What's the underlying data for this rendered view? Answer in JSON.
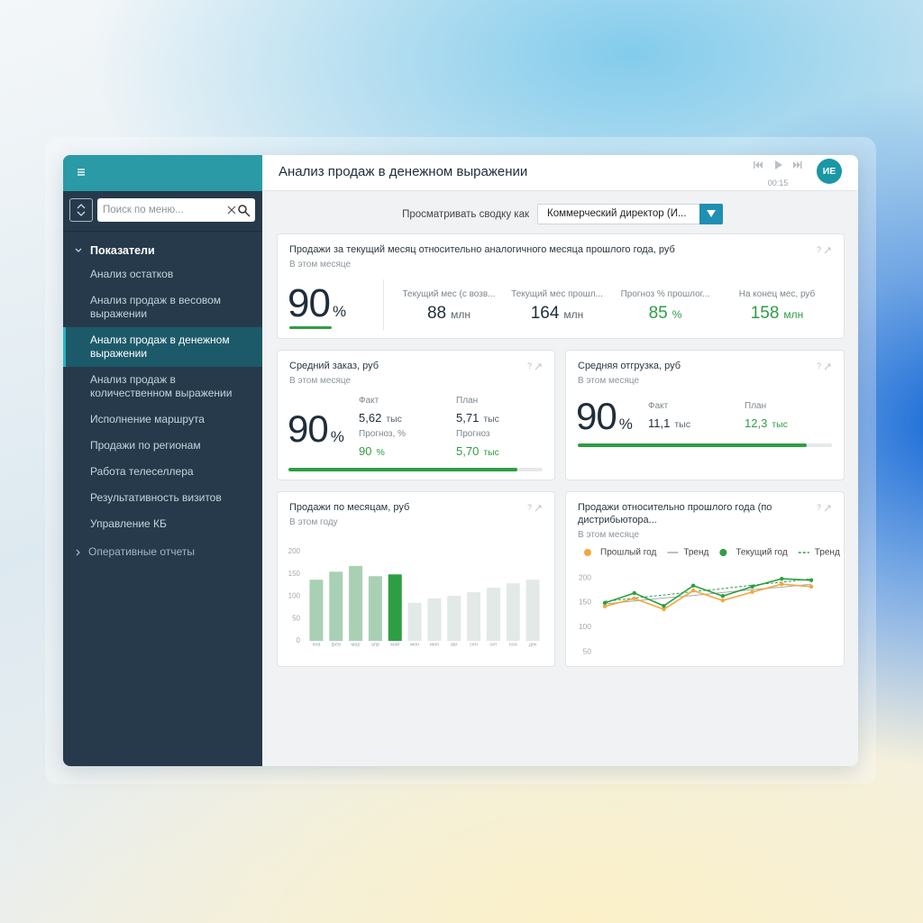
{
  "ui": {
    "help_icon": "?"
  },
  "sidebar": {
    "search_placeholder": "Поиск по меню...",
    "group": "Показатели",
    "items": [
      "Анализ остатков",
      "Анализ продаж в весовом выражении",
      "Анализ продаж в денежном выражении",
      "Анализ продаж в количественном выражении",
      "Исполнение маршрута",
      "Продажи по регионам",
      "Работа телеселлера",
      "Результативность визитов",
      "Управление КБ"
    ],
    "active_index": 2,
    "reports": "Оперативные отчеты"
  },
  "header": {
    "title": "Анализ продаж в денежном выражении",
    "time": "00:15",
    "avatar": "ИЕ"
  },
  "filter": {
    "label": "Просматривать сводку как",
    "value": "Коммерческий директор (И..."
  },
  "cards": [
    {
      "title": "Продажи за текущий месяц относительно аналогичного месяца прошлого года, руб",
      "subtitle": "В этом месяце",
      "percent": 90,
      "percent_unit": "%",
      "metrics": [
        {
          "label": "Текущий мес (с возв...",
          "value": 88,
          "unit": "млн",
          "color": "#1f2d3a"
        },
        {
          "label": "Текущий мес прошл...",
          "value": 164,
          "unit": "млн",
          "color": "#1f2d3a"
        },
        {
          "label": "Прогноз % прошлог...",
          "value": 85,
          "unit": "%",
          "color": "#2e9e44"
        },
        {
          "label": "На конец мес, руб",
          "value": 158,
          "unit": "млн",
          "color": "#2e9e44"
        }
      ]
    },
    {
      "title": "Средний заказ, руб",
      "subtitle": "В этом месяце",
      "percent": 90,
      "percent_unit": "%",
      "metrics": [
        {
          "label": "Факт",
          "value": "5,62",
          "unit": "тыс",
          "color": "#1f2d3a"
        },
        {
          "label": "План",
          "value": "5,71",
          "unit": "тыс",
          "color": "#1f2d3a"
        },
        {
          "label": "Прогноз, %",
          "value": 90,
          "unit": "%",
          "color": "#2e9e44"
        },
        {
          "label": "Прогноз",
          "value": "5,70",
          "unit": "тыс",
          "color": "#2e9e44"
        }
      ]
    },
    {
      "title": "Средняя отгрузка, руб",
      "subtitle": "В этом месяце",
      "percent": 90,
      "percent_unit": "%",
      "metrics": [
        {
          "label": "Факт",
          "value": "11,1",
          "unit": "тыс",
          "color": "#1f2d3a"
        },
        {
          "label": "План",
          "value": "12,3",
          "unit": "тыс",
          "color": "#2e9e44"
        }
      ]
    }
  ],
  "chart_data": [
    {
      "type": "bar",
      "title": "Продажи по месяцам, руб",
      "subtitle": "В этом году",
      "categories": [
        "янв",
        "фев",
        "мар",
        "апр",
        "май",
        "июн",
        "июл",
        "авг",
        "сен",
        "окт",
        "ноя",
        "дек"
      ],
      "values": [
        137,
        155,
        168,
        145,
        149,
        85,
        95,
        101,
        109,
        119,
        129,
        137
      ],
      "colors": [
        "#a9d0b4",
        "#a9d0b4",
        "#a9d0b4",
        "#a9d0b4",
        "#2e9e44",
        "#e2e9e7",
        "#e2e9e7",
        "#e2e9e7",
        "#e2e9e7",
        "#e2e9e7",
        "#e2e9e7",
        "#e2e9e7"
      ],
      "ylim": [
        0,
        200
      ],
      "yticks": [
        0,
        50,
        100,
        150,
        200
      ]
    },
    {
      "type": "line",
      "title": "Продажи относительно прошлого года (по дистрибьютора...",
      "subtitle": "В этом месяце",
      "categories": [
        null,
        null,
        null,
        null,
        null,
        null,
        null,
        null
      ],
      "series": [
        {
          "name": "Прошлый год",
          "color": "#f2a83a",
          "markers": true,
          "dashed": false,
          "values": [
            142,
            158,
            136,
            174,
            154,
            171,
            187,
            182
          ]
        },
        {
          "name": "Тренд",
          "color": "#a3acb2",
          "markers": false,
          "dashed": false,
          "values": [
            147,
            153,
            159,
            164,
            170,
            176,
            181,
            187
          ]
        },
        {
          "name": "Текущий год",
          "color": "#2e9e44",
          "markers": true,
          "dashed": false,
          "values": [
            149,
            169,
            143,
            184,
            163,
            182,
            198,
            195
          ]
        },
        {
          "name": "Тренд",
          "color": "#2e9e44",
          "markers": false,
          "dashed": true,
          "values": [
            152,
            159,
            165,
            172,
            178,
            185,
            191,
            198
          ]
        }
      ],
      "ylim": [
        50,
        200
      ],
      "yticks": [
        50,
        100,
        150,
        200
      ]
    }
  ]
}
